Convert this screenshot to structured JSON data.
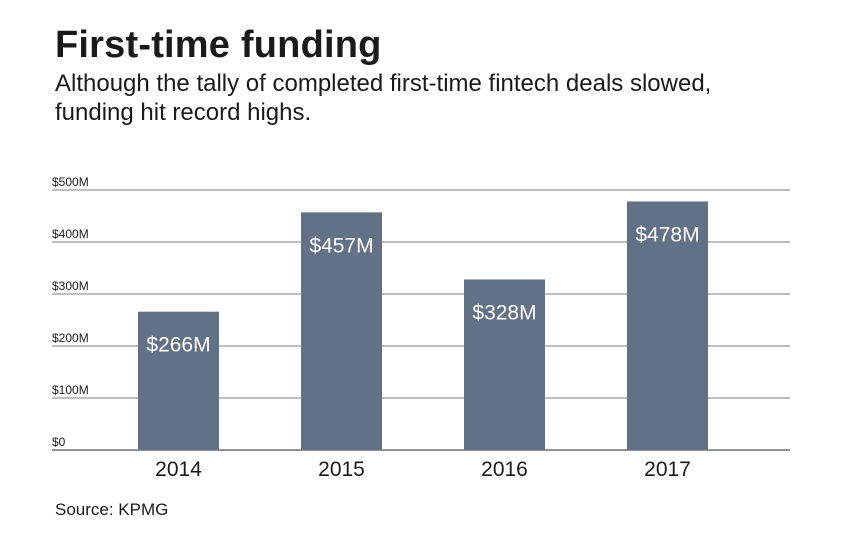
{
  "title": "First-time funding",
  "subtitle": "Although the tally of completed first-time fintech deals slowed, funding hit record highs.",
  "source": "Source: KPMG",
  "colors": {
    "bar": "#627186",
    "grid": "#555555",
    "bar_label": "#ffffff",
    "text": "#1a1a1a"
  },
  "chart_data": {
    "type": "bar",
    "categories": [
      "2014",
      "2015",
      "2016",
      "2017"
    ],
    "values": [
      266,
      457,
      328,
      478
    ],
    "data_labels": [
      "$266M",
      "$457M",
      "$328M",
      "$478M"
    ],
    "y_ticks": [
      0,
      100,
      200,
      300,
      400,
      500
    ],
    "y_tick_labels": [
      "$0",
      "$100M",
      "$200M",
      "$300M",
      "$400M",
      "$500M"
    ],
    "ylim": [
      0,
      500
    ],
    "grid": true,
    "legend": "none"
  }
}
